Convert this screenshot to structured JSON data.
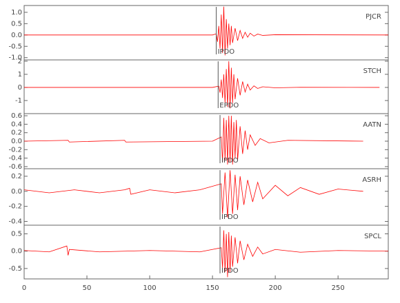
{
  "chart_data": [
    {
      "type": "line",
      "title": "PJCR",
      "color": "#ff0000",
      "x": [
        0,
        50,
        100,
        150,
        153,
        154,
        155,
        156,
        157,
        158,
        159,
        160,
        161,
        162,
        163,
        164,
        165,
        166,
        168,
        170,
        172,
        174,
        176,
        178,
        180,
        183,
        186,
        190,
        200,
        290
      ],
      "values": [
        0,
        0,
        0,
        0,
        0.05,
        -0.3,
        0.4,
        -0.6,
        0.9,
        -0.8,
        1.25,
        -0.9,
        0.7,
        -0.6,
        0.5,
        -0.45,
        0.4,
        -0.35,
        0.3,
        -0.25,
        0.2,
        -0.15,
        0.12,
        -0.1,
        0.08,
        -0.05,
        0.04,
        -0.02,
        0.01,
        0
      ],
      "xlim": [
        0,
        290
      ],
      "ylim": [
        -1.1,
        1.3
      ],
      "yticks": [
        {
          "value": -1,
          "label": "-1.0"
        },
        -0.5,
        {
          "value": 0,
          "label": "0.0"
        },
        0.5,
        {
          "value": 1,
          "label": "1.0"
        }
      ],
      "pick": {
        "label": "IPDO",
        "x": 153
      }
    },
    {
      "type": "line",
      "title": "STCH",
      "color": "#ff0000",
      "x": [
        0,
        50,
        100,
        150,
        155,
        156,
        157,
        158,
        159,
        160,
        161,
        162,
        163,
        164,
        165,
        166,
        167,
        168,
        170,
        172,
        174,
        176,
        178,
        180,
        183,
        186,
        190,
        200,
        220,
        283
      ],
      "values": [
        0,
        0,
        0,
        0,
        0.1,
        -0.4,
        0.6,
        -0.8,
        1.0,
        -1.2,
        1.4,
        -1.5,
        2.0,
        -1.6,
        1.5,
        -1.2,
        1.0,
        -0.9,
        0.7,
        -0.6,
        0.45,
        -0.35,
        0.25,
        -0.2,
        0.12,
        -0.08,
        0.05,
        -0.03,
        0.01,
        0
      ],
      "xlim": [
        0,
        290
      ],
      "ylim": [
        -2,
        2.1
      ],
      "yticks": [
        -1,
        0,
        1,
        2
      ],
      "pick": {
        "label": "EPDO",
        "x": 154.5
      }
    },
    {
      "type": "line",
      "title": "AATN",
      "color": "#ff0000",
      "x": [
        0,
        35,
        36,
        80,
        81,
        150,
        157,
        158,
        159,
        160,
        161,
        162,
        163,
        164,
        165,
        166,
        167,
        168,
        169,
        170,
        172,
        174,
        176,
        178,
        180,
        184,
        188,
        195,
        210,
        270
      ],
      "values": [
        0,
        0.02,
        -0.02,
        0.02,
        -0.02,
        0,
        0.1,
        -0.5,
        0.55,
        -0.45,
        0.5,
        -0.55,
        0.6,
        -0.5,
        0.6,
        -0.55,
        0.45,
        -0.4,
        0.5,
        -0.45,
        0.35,
        -0.3,
        0.25,
        -0.2,
        0.15,
        -0.1,
        0.06,
        -0.04,
        0.02,
        0
      ],
      "xlim": [
        0,
        290
      ],
      "ylim": [
        -0.65,
        0.65
      ],
      "yticks": [
        -0.6,
        -0.4,
        -0.2,
        {
          "value": 0,
          "label": "0.0"
        },
        0.2,
        0.4,
        0.6
      ],
      "pick": {
        "label": "IPDO",
        "x": 156
      }
    },
    {
      "type": "line",
      "title": "ASRH",
      "color": "#ff0000",
      "x": [
        0,
        20,
        40,
        60,
        80,
        84,
        85,
        100,
        120,
        140,
        157,
        158,
        160,
        162,
        164,
        166,
        168,
        170,
        172,
        175,
        178,
        182,
        186,
        190,
        200,
        210,
        220,
        235,
        250,
        270
      ],
      "values": [
        0.02,
        -0.02,
        0.02,
        -0.02,
        0.02,
        0.04,
        -0.04,
        0.02,
        -0.02,
        0.02,
        0.1,
        -0.3,
        0.25,
        -0.35,
        0.28,
        -0.3,
        0.22,
        -0.25,
        0.2,
        -0.18,
        0.15,
        -0.14,
        0.12,
        -0.1,
        0.08,
        -0.06,
        0.05,
        -0.04,
        0.03,
        0
      ],
      "xlim": [
        0,
        290
      ],
      "ylim": [
        -0.45,
        0.3
      ],
      "yticks": [
        -0.4,
        -0.2,
        {
          "value": 0,
          "label": "0.0"
        },
        0.2
      ],
      "pick": {
        "label": "IPDO",
        "x": 156
      }
    },
    {
      "type": "line",
      "title": "SPCL",
      "color": "#ff0000",
      "x": [
        0,
        20,
        34,
        35,
        36,
        60,
        100,
        140,
        157,
        158,
        159,
        160,
        161,
        162,
        163,
        164,
        165,
        166,
        168,
        170,
        172,
        175,
        178,
        182,
        186,
        190,
        200,
        220,
        250,
        290
      ],
      "values": [
        0.02,
        -0.02,
        0.15,
        -0.12,
        0.05,
        -0.02,
        0.02,
        -0.02,
        0.1,
        -0.5,
        0.6,
        -0.6,
        0.5,
        -0.75,
        0.55,
        -0.6,
        0.45,
        -0.45,
        0.4,
        -0.35,
        0.3,
        -0.25,
        0.2,
        -0.15,
        0.12,
        -0.08,
        0.05,
        -0.03,
        0.02,
        0
      ],
      "xlim": [
        0,
        290
      ],
      "ylim": [
        -0.8,
        0.75
      ],
      "yticks": [
        -0.5,
        {
          "value": 0,
          "label": "0.0"
        },
        0.5
      ],
      "xticks": [
        0,
        50,
        100,
        150,
        200,
        250
      ],
      "pick": {
        "label": "IPDO",
        "x": 156
      }
    }
  ]
}
